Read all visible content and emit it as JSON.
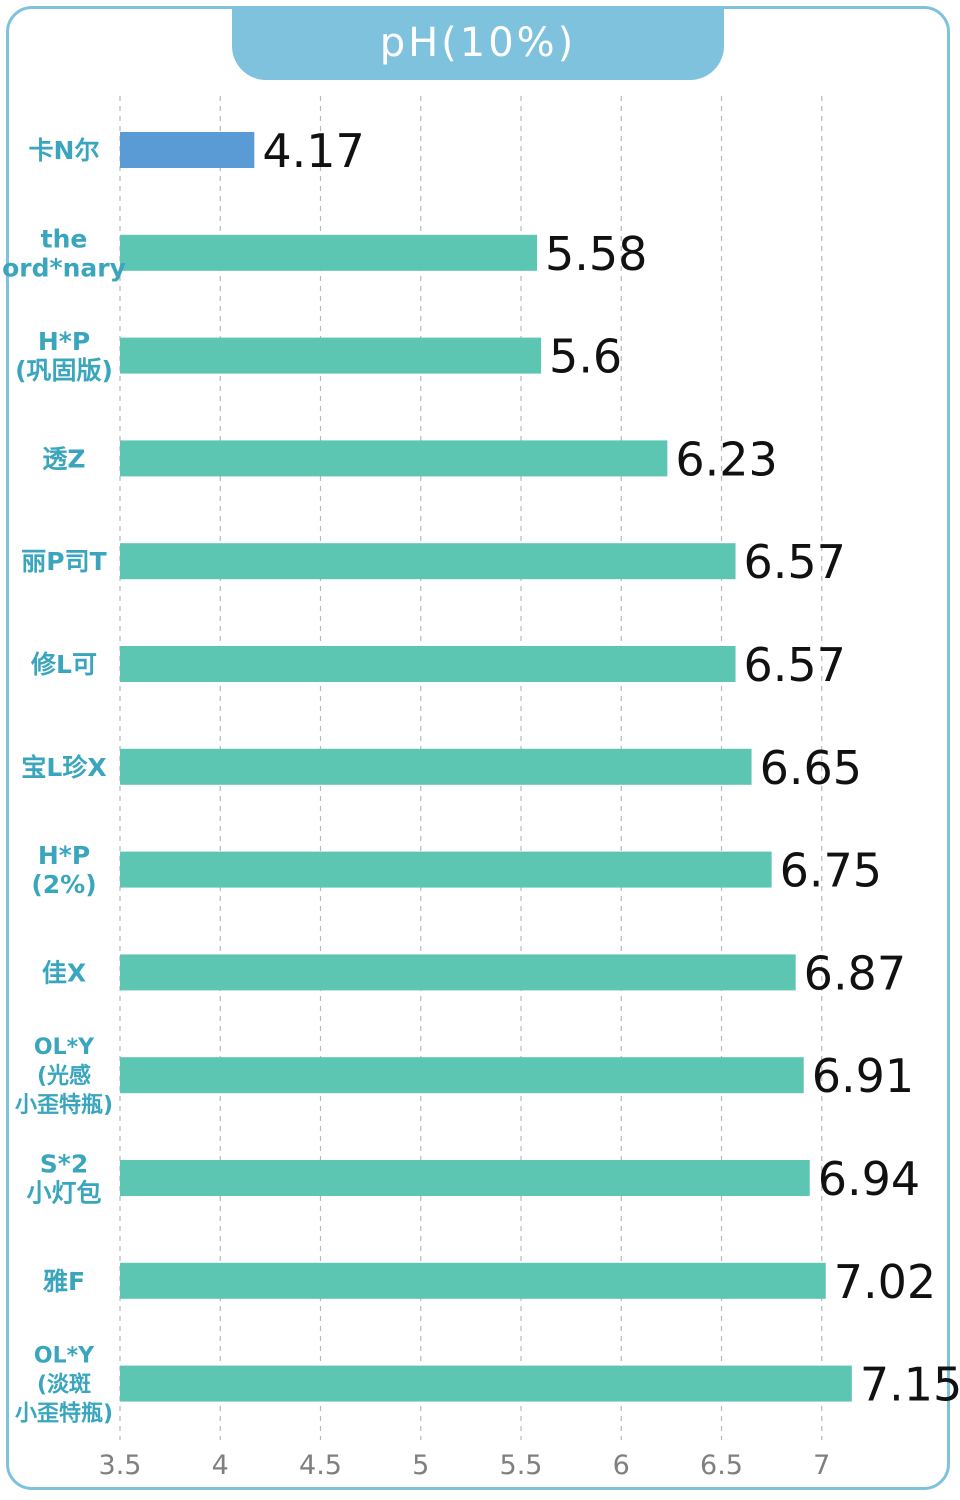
{
  "chart_data": {
    "type": "bar",
    "orientation": "horizontal",
    "title": "pH(10%)",
    "categories": [
      [
        "卡N尔"
      ],
      [
        "the",
        "ord*nary"
      ],
      [
        "H*P",
        "(巩固版)"
      ],
      [
        "透Z"
      ],
      [
        "丽P司T"
      ],
      [
        "修L可"
      ],
      [
        "宝L珍X"
      ],
      [
        "H*P",
        "(2%)"
      ],
      [
        "佳X"
      ],
      [
        "OL*Y",
        "(光感",
        "小歪特瓶)"
      ],
      [
        "S*2",
        "小灯包"
      ],
      [
        "雅F"
      ],
      [
        "OL*Y",
        "(淡斑",
        "小歪特瓶)"
      ]
    ],
    "values": [
      4.17,
      5.58,
      5.6,
      6.23,
      6.57,
      6.57,
      6.65,
      6.75,
      6.87,
      6.91,
      6.94,
      7.02,
      7.15
    ],
    "value_labels": [
      "4.17",
      "5.58",
      "5.6",
      "6.23",
      "6.57",
      "6.57",
      "6.65",
      "6.75",
      "6.87",
      "6.91",
      "6.94",
      "7.02",
      "7.15"
    ],
    "xlim": [
      3.5,
      7.5
    ],
    "xticks": [
      3.5,
      4,
      4.5,
      5,
      5.5,
      6,
      6.5,
      7
    ],
    "xtick_labels": [
      "3.5",
      "4",
      "4.5",
      "5",
      "5.5",
      "6",
      "6.5",
      "7"
    ],
    "xlabel": "",
    "ylabel": "",
    "grid": "vertical dashed",
    "colors": {
      "highlight_bar": "#5b9bd5",
      "bar": "#5cc6b3",
      "frame": "#7fc2de",
      "label": "#3aa6bd"
    },
    "highlight_index": 0
  }
}
